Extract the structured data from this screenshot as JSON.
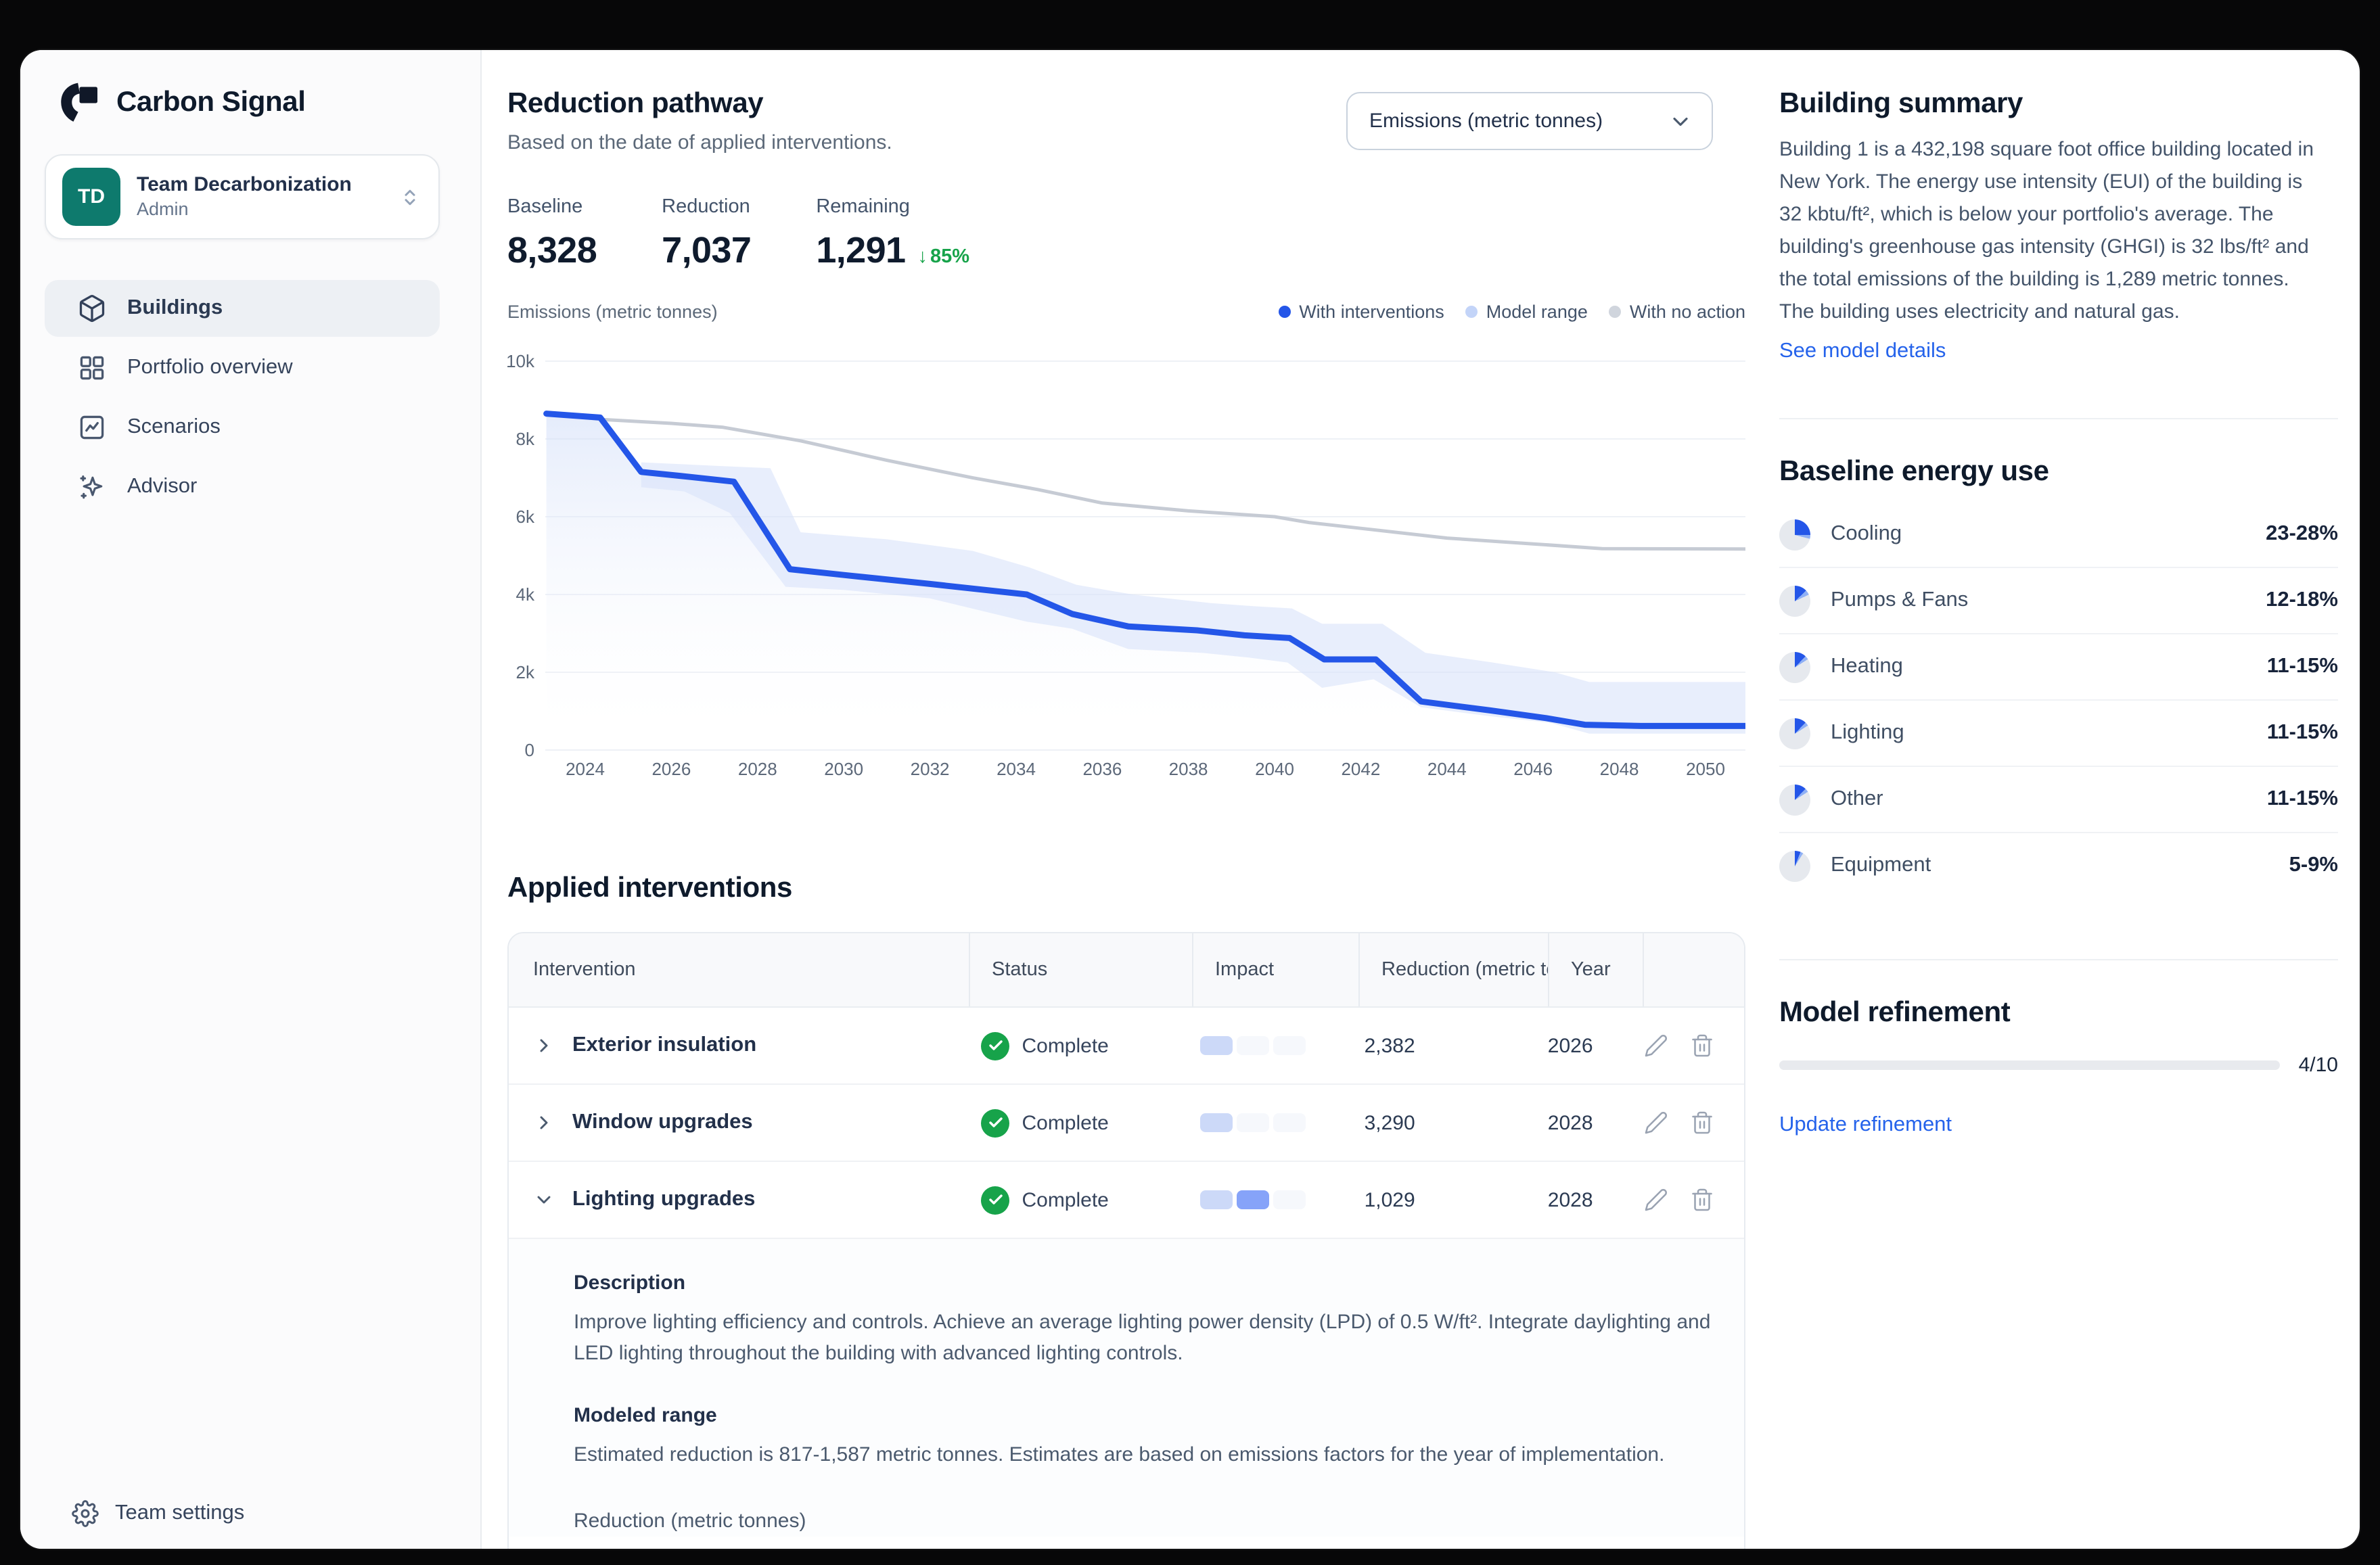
{
  "app": {
    "brand": "Carbon Signal"
  },
  "team_switcher": {
    "initials": "TD",
    "name": "Team Decarbonization",
    "role": "Admin"
  },
  "nav": {
    "items": [
      {
        "label": "Buildings",
        "icon": "box-icon",
        "active": true
      },
      {
        "label": "Portfolio overview",
        "icon": "grid-icon",
        "active": false
      },
      {
        "label": "Scenarios",
        "icon": "chart-line-icon",
        "active": false
      },
      {
        "label": "Advisor",
        "icon": "sparkles-icon",
        "active": false
      }
    ],
    "footer": {
      "label": "Team settings",
      "icon": "gear-icon"
    }
  },
  "header": {
    "title": "Reduction pathway",
    "subtitle": "Based on the date of applied interventions.",
    "unit_dropdown": {
      "value": "Emissions (metric tonnes)"
    }
  },
  "stats": {
    "items": [
      {
        "label": "Baseline",
        "value": "8,328"
      },
      {
        "label": "Reduction",
        "value": "7,037"
      },
      {
        "label": "Remaining",
        "value": "1,291",
        "delta": "85%",
        "delta_direction": "down"
      }
    ]
  },
  "chart_data": {
    "type": "line",
    "ylabel": "Emissions (metric tonnes)",
    "xlim": [
      2023,
      2051.3
    ],
    "ylim": [
      0,
      10000
    ],
    "yticks": [
      0,
      2000,
      4000,
      6000,
      8000,
      10000
    ],
    "ytick_labels": [
      "0",
      "2k",
      "4k",
      "6k",
      "8k",
      "10k"
    ],
    "xticks": [
      2024,
      2026,
      2028,
      2030,
      2032,
      2034,
      2036,
      2038,
      2040,
      2042,
      2044,
      2046,
      2048,
      2050
    ],
    "grid": true,
    "legend_position": "top-right",
    "legend": [
      {
        "label": "With interventions",
        "color": "#2456e8"
      },
      {
        "label": "Model range",
        "color": "#c3d4f8"
      },
      {
        "label": "With no action",
        "color": "#d0d5dd"
      }
    ],
    "series": [
      {
        "name": "With no action",
        "kind": "line",
        "color": "#c6cbd4",
        "points": [
          [
            2023.1,
            8650
          ],
          [
            2024.4,
            8500
          ],
          [
            2026,
            8400
          ],
          [
            2027.2,
            8300
          ],
          [
            2029,
            7950
          ],
          [
            2031,
            7450
          ],
          [
            2033,
            7000
          ],
          [
            2034.5,
            6700
          ],
          [
            2036,
            6350
          ],
          [
            2038,
            6150
          ],
          [
            2040,
            6000
          ],
          [
            2040.8,
            5850
          ],
          [
            2042,
            5700
          ],
          [
            2044,
            5450
          ],
          [
            2046,
            5300
          ],
          [
            2047.6,
            5180
          ],
          [
            2051.3,
            5170
          ]
        ]
      },
      {
        "name": "With interventions",
        "kind": "line",
        "color": "#2456e8",
        "points": [
          [
            2023.1,
            8650
          ],
          [
            2024.35,
            8550
          ],
          [
            2025.3,
            7150
          ],
          [
            2026.2,
            7050
          ],
          [
            2027.45,
            6900
          ],
          [
            2028.75,
            4650
          ],
          [
            2030,
            4500
          ],
          [
            2032,
            4270
          ],
          [
            2034.25,
            4000
          ],
          [
            2035.3,
            3500
          ],
          [
            2036.6,
            3180
          ],
          [
            2038.2,
            3080
          ],
          [
            2039.3,
            2950
          ],
          [
            2040.35,
            2880
          ],
          [
            2041.15,
            2330
          ],
          [
            2042.35,
            2330
          ],
          [
            2043.4,
            1250
          ],
          [
            2045,
            1020
          ],
          [
            2046.3,
            820
          ],
          [
            2047.2,
            650
          ],
          [
            2048.5,
            620
          ],
          [
            2051.3,
            620
          ]
        ]
      },
      {
        "name": "Model range",
        "kind": "band",
        "color": "#d8e2fa",
        "high": [
          [
            2025.3,
            7400
          ],
          [
            2027.2,
            7300
          ],
          [
            2028.3,
            7250
          ],
          [
            2029,
            5600
          ],
          [
            2031,
            5420
          ],
          [
            2033,
            5120
          ],
          [
            2034.3,
            4700
          ],
          [
            2035.4,
            4250
          ],
          [
            2036.7,
            4000
          ],
          [
            2038.5,
            3780
          ],
          [
            2039.5,
            3700
          ],
          [
            2040.4,
            3640
          ],
          [
            2041.1,
            3250
          ],
          [
            2042.5,
            3250
          ],
          [
            2043.5,
            2500
          ],
          [
            2045,
            2260
          ],
          [
            2046.5,
            2000
          ],
          [
            2047.3,
            1750
          ],
          [
            2051.3,
            1750
          ]
        ],
        "low": [
          [
            2025.3,
            6760
          ],
          [
            2026.3,
            6650
          ],
          [
            2027.35,
            6100
          ],
          [
            2028.65,
            4200
          ],
          [
            2030,
            4120
          ],
          [
            2032,
            3900
          ],
          [
            2034.25,
            3300
          ],
          [
            2035.3,
            3120
          ],
          [
            2036.6,
            2600
          ],
          [
            2038.3,
            2500
          ],
          [
            2039.4,
            2380
          ],
          [
            2040.3,
            2250
          ],
          [
            2041.1,
            1600
          ],
          [
            2042.3,
            1820
          ],
          [
            2043.4,
            1100
          ],
          [
            2045,
            870
          ],
          [
            2046.4,
            700
          ],
          [
            2047.3,
            420
          ],
          [
            2051.3,
            420
          ]
        ]
      }
    ]
  },
  "interventions": {
    "title": "Applied interventions",
    "columns": [
      "Intervention",
      "Status",
      "Impact",
      "Reduction (metric tonnes)",
      "Year",
      ""
    ],
    "rows": [
      {
        "name": "Exterior insulation",
        "status": "Complete",
        "impact": [
          1,
          0,
          0
        ],
        "reduction": "2,382",
        "year": "2026",
        "expanded": false
      },
      {
        "name": "Window upgrades",
        "status": "Complete",
        "impact": [
          1,
          0,
          0
        ],
        "reduction": "3,290",
        "year": "2028",
        "expanded": false
      },
      {
        "name": "Lighting upgrades",
        "status": "Complete",
        "impact": [
          1,
          2,
          0
        ],
        "reduction": "1,029",
        "year": "2028",
        "expanded": true
      }
    ],
    "detail": {
      "description_title": "Description",
      "description_lines": [
        "Improve lighting efficiency and controls. Achieve an average lighting power density (LPD) of 0.5 W/ft². Integrate daylighting and",
        "LED lighting throughout the building with advanced lighting controls."
      ],
      "modeled_range_title": "Modeled range",
      "modeled_range_text": "Estimated reduction is 817-1,587 metric tonnes. Estimates are based on emissions factors for the year of implementation.",
      "reduction_label": "Reduction (metric tonnes)"
    }
  },
  "building_summary": {
    "title": "Building summary",
    "body": "Building 1 is a 432,198 square foot office building located in New York. The energy use intensity (EUI) of the building is 32 kbtu/ft², which is below your portfolio's average. The building's greenhouse gas intensity (GHGI) is 32 lbs/ft² and the total emissions of the building is 1,289 metric tonnes. The building uses electricity and natural gas.",
    "link": "See model details"
  },
  "baseline_energy": {
    "title": "Baseline energy use",
    "items": [
      {
        "label": "Cooling",
        "value": "23-28%",
        "pie": [
          25,
          4
        ]
      },
      {
        "label": "Pumps & Fans",
        "value": "12-18%",
        "pie": [
          13,
          5
        ]
      },
      {
        "label": "Heating",
        "value": "11-15%",
        "pie": [
          12,
          4
        ]
      },
      {
        "label": "Lighting",
        "value": "11-15%",
        "pie": [
          12,
          4
        ]
      },
      {
        "label": "Other",
        "value": "11-15%",
        "pie": [
          12,
          4
        ]
      },
      {
        "label": "Equipment",
        "value": "5-9%",
        "pie": [
          6,
          3
        ]
      }
    ]
  },
  "model_refinement": {
    "title": "Model refinement",
    "progress": 40,
    "progress_label": "4/10",
    "link": "Update refinement"
  },
  "colors": {
    "accent_blue": "#2456e8",
    "link_blue": "#2563eb",
    "success_green": "#17a34a",
    "band_blue": "#d8e2fa",
    "no_action_gray": "#c6cbd4",
    "avatar_teal": "#0e7a6d",
    "pie_main": "#2456e8",
    "pie_light": "#8fb0f5",
    "pie_rest": "#e6e9ee"
  }
}
